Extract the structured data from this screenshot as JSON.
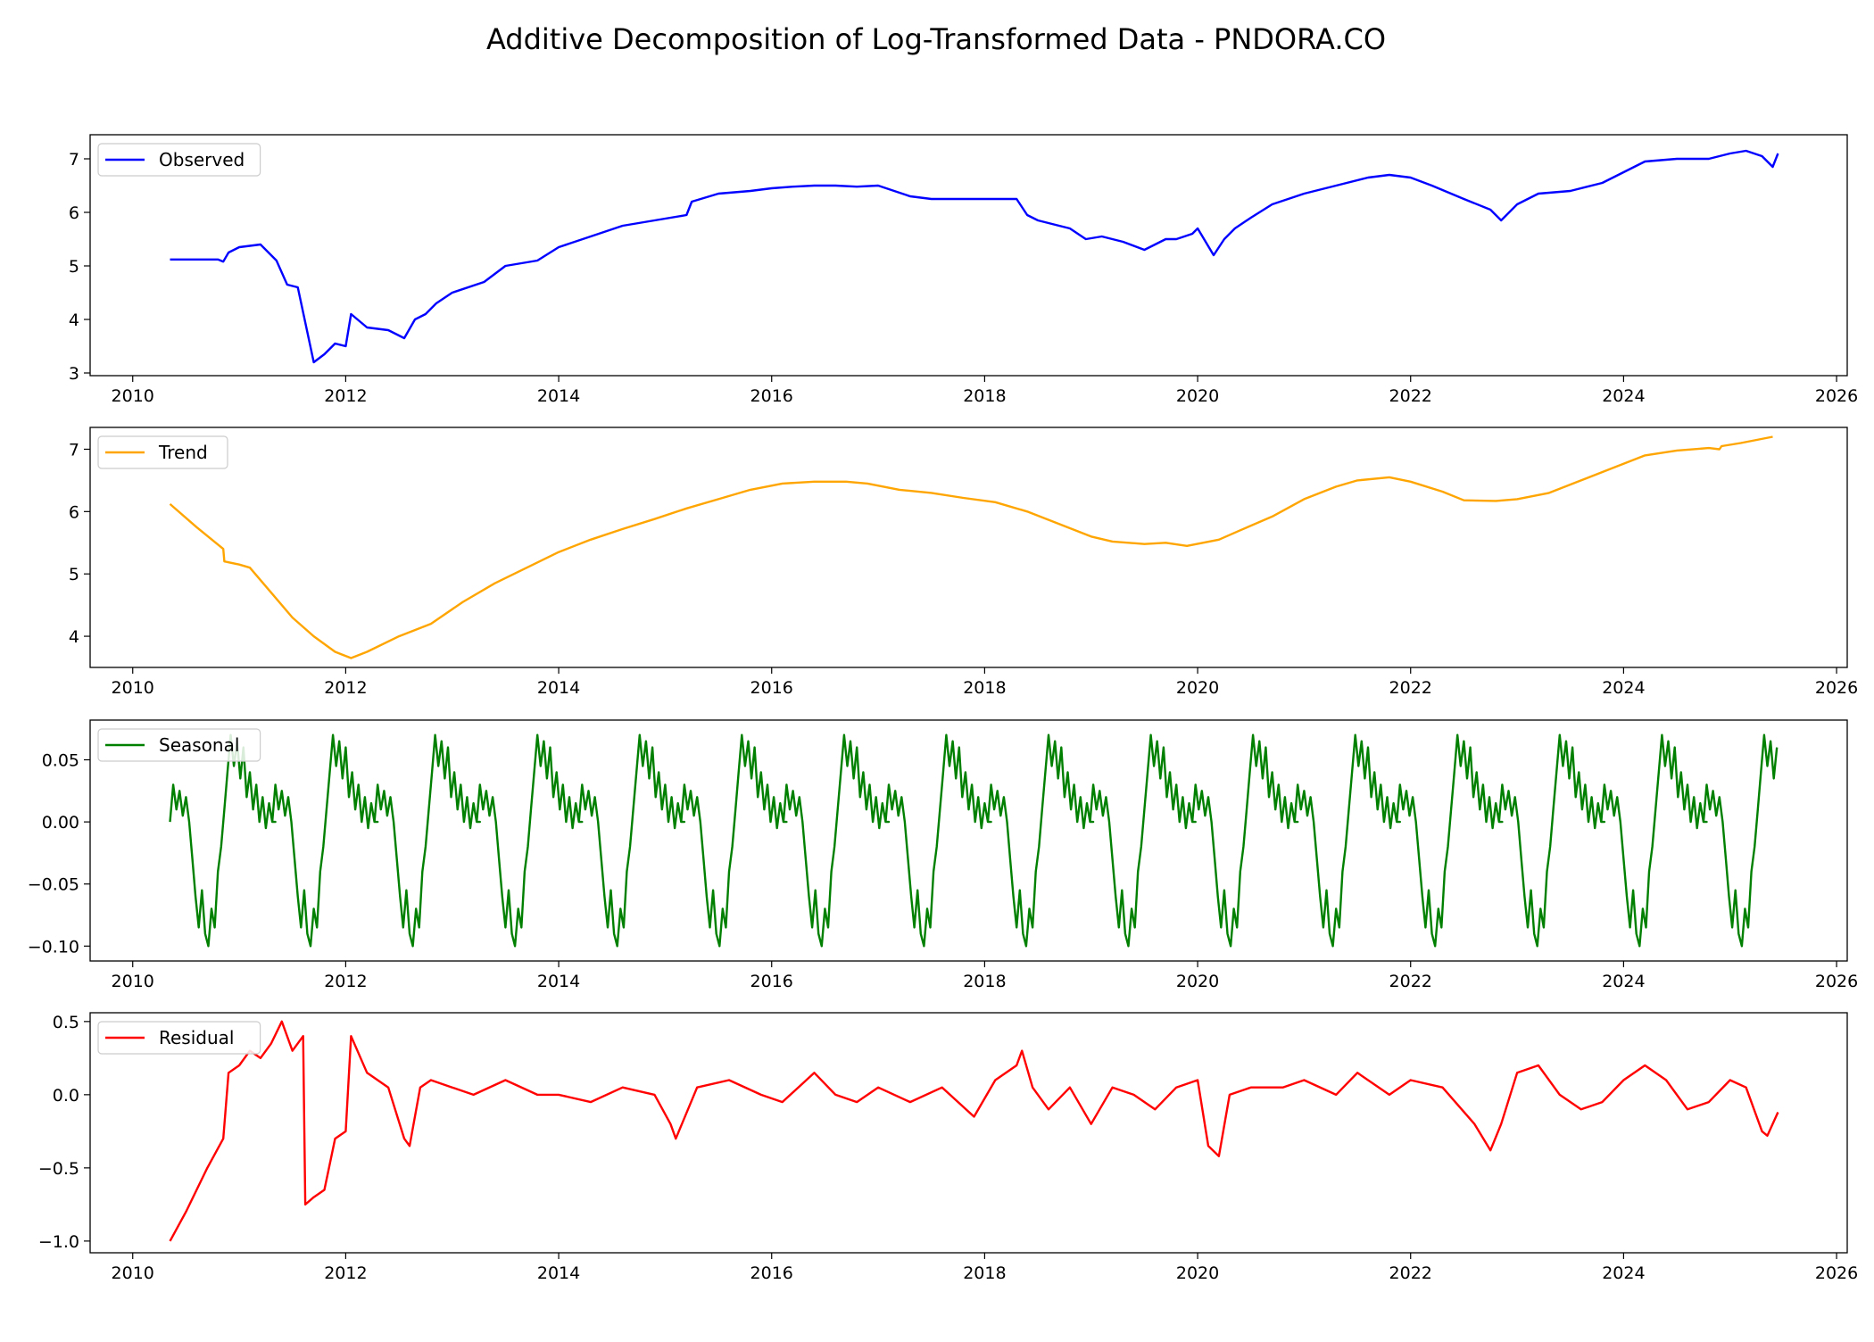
{
  "chart_data": {
    "type": "line",
    "title": "Additive Decomposition of Log-Transformed Data - PNDORA.CO",
    "x_ticks": [
      "2010",
      "2012",
      "2014",
      "2016",
      "2018",
      "2020",
      "2022",
      "2024",
      "2026"
    ],
    "xlim": [
      2009.6,
      2026.1
    ],
    "panels": [
      {
        "name": "Observed",
        "color": "#0000ff",
        "ylim": [
          2.95,
          7.45
        ],
        "y_ticks": [
          "3",
          "4",
          "5",
          "6",
          "7"
        ],
        "y_tick_values": [
          3,
          4,
          5,
          6,
          7
        ],
        "x": [
          2010.35,
          2010.8,
          2010.85,
          2010.9,
          2011.0,
          2011.2,
          2011.35,
          2011.45,
          2011.55,
          2011.7,
          2011.8,
          2011.9,
          2012.0,
          2012.05,
          2012.2,
          2012.4,
          2012.55,
          2012.65,
          2012.75,
          2012.85,
          2013.0,
          2013.3,
          2013.5,
          2013.8,
          2014.0,
          2014.3,
          2014.6,
          2014.9,
          2015.2,
          2015.25,
          2015.5,
          2015.8,
          2016.0,
          2016.2,
          2016.4,
          2016.6,
          2016.8,
          2017.0,
          2017.3,
          2017.5,
          2017.8,
          2018.0,
          2018.3,
          2018.4,
          2018.5,
          2018.6,
          2018.8,
          2018.95,
          2019.1,
          2019.3,
          2019.5,
          2019.7,
          2019.8,
          2019.95,
          2020.0,
          2020.15,
          2020.25,
          2020.35,
          2020.5,
          2020.7,
          2021.0,
          2021.3,
          2021.6,
          2021.8,
          2022.0,
          2022.2,
          2022.5,
          2022.75,
          2022.85,
          2023.0,
          2023.2,
          2023.5,
          2023.8,
          2024.0,
          2024.2,
          2024.5,
          2024.8,
          2025.0,
          2025.15,
          2025.3,
          2025.4,
          2025.45
        ],
        "values": [
          5.12,
          5.12,
          5.08,
          5.25,
          5.35,
          5.4,
          5.1,
          4.65,
          4.6,
          3.2,
          3.35,
          3.55,
          3.5,
          4.1,
          3.85,
          3.8,
          3.65,
          4.0,
          4.1,
          4.3,
          4.5,
          4.7,
          5.0,
          5.1,
          5.35,
          5.55,
          5.75,
          5.85,
          5.95,
          6.2,
          6.35,
          6.4,
          6.45,
          6.48,
          6.5,
          6.5,
          6.48,
          6.5,
          6.3,
          6.25,
          6.25,
          6.25,
          6.25,
          5.95,
          5.85,
          5.8,
          5.7,
          5.5,
          5.55,
          5.45,
          5.3,
          5.5,
          5.5,
          5.6,
          5.7,
          5.2,
          5.5,
          5.7,
          5.9,
          6.15,
          6.35,
          6.5,
          6.65,
          6.7,
          6.65,
          6.5,
          6.25,
          6.05,
          5.85,
          6.15,
          6.35,
          6.4,
          6.55,
          6.75,
          6.95,
          7.0,
          7.0,
          7.1,
          7.15,
          7.05,
          6.85,
          7.1
        ]
      },
      {
        "name": "Trend",
        "color": "#ffa500",
        "ylim": [
          3.5,
          7.35
        ],
        "y_ticks": [
          "4",
          "5",
          "6",
          "7"
        ],
        "y_tick_values": [
          4,
          5,
          6,
          7
        ],
        "x": [
          2010.35,
          2010.6,
          2010.85,
          2010.86,
          2011.0,
          2011.1,
          2011.3,
          2011.5,
          2011.7,
          2011.9,
          2012.05,
          2012.2,
          2012.5,
          2012.8,
          2013.1,
          2013.4,
          2013.7,
          2014.0,
          2014.3,
          2014.6,
          2014.9,
          2015.2,
          2015.5,
          2015.8,
          2016.1,
          2016.4,
          2016.7,
          2016.9,
          2017.2,
          2017.5,
          2017.8,
          2018.1,
          2018.4,
          2018.7,
          2019.0,
          2019.2,
          2019.5,
          2019.7,
          2019.9,
          2020.2,
          2020.4,
          2020.7,
          2021.0,
          2021.3,
          2021.5,
          2021.8,
          2022.0,
          2022.3,
          2022.5,
          2022.8,
          2023.0,
          2023.3,
          2023.6,
          2023.9,
          2024.2,
          2024.5,
          2024.8,
          2024.9,
          2024.92,
          2025.1,
          2025.4
        ],
        "values": [
          6.12,
          5.75,
          5.4,
          5.2,
          5.15,
          5.1,
          4.7,
          4.3,
          4.0,
          3.75,
          3.65,
          3.75,
          4.0,
          4.2,
          4.55,
          4.85,
          5.1,
          5.35,
          5.55,
          5.72,
          5.88,
          6.05,
          6.2,
          6.35,
          6.45,
          6.48,
          6.48,
          6.45,
          6.35,
          6.3,
          6.22,
          6.15,
          6.0,
          5.8,
          5.6,
          5.52,
          5.48,
          5.5,
          5.45,
          5.55,
          5.7,
          5.92,
          6.2,
          6.4,
          6.5,
          6.55,
          6.48,
          6.32,
          6.18,
          6.17,
          6.2,
          6.3,
          6.5,
          6.7,
          6.9,
          6.98,
          7.02,
          7.0,
          7.05,
          7.1,
          7.2
        ]
      },
      {
        "name": "Seasonal",
        "color": "#008000",
        "ylim": [
          -0.112,
          0.082
        ],
        "y_ticks": [
          "0.05",
          "0.00",
          "−0.05",
          "−0.10"
        ],
        "y_tick_values": [
          0.05,
          0.0,
          -0.05,
          -0.1
        ],
        "period_years": 0.96,
        "x_start": 2010.35,
        "x_end": 2025.45,
        "cycle_phase": [
          0,
          0.03,
          0.06,
          0.09,
          0.12,
          0.15,
          0.18,
          0.21,
          0.24,
          0.27,
          0.3,
          0.33,
          0.36,
          0.39,
          0.42,
          0.45,
          0.48,
          0.51,
          0.54,
          0.57,
          0.6,
          0.63,
          0.66,
          0.69,
          0.72,
          0.75,
          0.78,
          0.81,
          0.84,
          0.87,
          0.9,
          0.93,
          0.96,
          0.99
        ],
        "cycle_values": [
          0.0,
          0.03,
          0.01,
          0.025,
          0.005,
          0.02,
          0.0,
          -0.03,
          -0.06,
          -0.085,
          -0.055,
          -0.09,
          -0.1,
          -0.07,
          -0.085,
          -0.04,
          -0.02,
          0.01,
          0.04,
          0.07,
          0.045,
          0.065,
          0.035,
          0.06,
          0.02,
          0.04,
          0.01,
          0.03,
          0.0,
          0.02,
          -0.005,
          0.015,
          0.0,
          0.0
        ]
      },
      {
        "name": "Residual",
        "color": "#ff0000",
        "ylim": [
          -1.08,
          0.56
        ],
        "y_ticks": [
          "0.5",
          "0.0",
          "−0.5",
          "−1.0"
        ],
        "y_tick_values": [
          0.5,
          0.0,
          -0.5,
          -1.0
        ],
        "x": [
          2010.35,
          2010.5,
          2010.7,
          2010.85,
          2010.9,
          2011.0,
          2011.1,
          2011.2,
          2011.3,
          2011.4,
          2011.5,
          2011.6,
          2011.62,
          2011.7,
          2011.8,
          2011.9,
          2012.0,
          2012.05,
          2012.2,
          2012.4,
          2012.55,
          2012.6,
          2012.7,
          2012.8,
          2013.0,
          2013.2,
          2013.5,
          2013.8,
          2014.0,
          2014.3,
          2014.6,
          2014.9,
          2015.05,
          2015.1,
          2015.3,
          2015.6,
          2015.9,
          2016.1,
          2016.4,
          2016.6,
          2016.8,
          2017.0,
          2017.3,
          2017.6,
          2017.9,
          2018.1,
          2018.3,
          2018.35,
          2018.45,
          2018.6,
          2018.8,
          2019.0,
          2019.2,
          2019.4,
          2019.6,
          2019.8,
          2020.0,
          2020.1,
          2020.2,
          2020.3,
          2020.5,
          2020.8,
          2021.0,
          2021.3,
          2021.5,
          2021.8,
          2022.0,
          2022.3,
          2022.6,
          2022.75,
          2022.85,
          2023.0,
          2023.2,
          2023.4,
          2023.6,
          2023.8,
          2024.0,
          2024.2,
          2024.4,
          2024.6,
          2024.8,
          2025.0,
          2025.15,
          2025.3,
          2025.35,
          2025.45
        ],
        "values": [
          -1.0,
          -0.8,
          -0.5,
          -0.3,
          0.15,
          0.2,
          0.3,
          0.25,
          0.35,
          0.5,
          0.3,
          0.4,
          -0.75,
          -0.7,
          -0.65,
          -0.3,
          -0.25,
          0.4,
          0.15,
          0.05,
          -0.3,
          -0.35,
          0.05,
          0.1,
          0.05,
          0.0,
          0.1,
          0.0,
          0.0,
          -0.05,
          0.05,
          0.0,
          -0.2,
          -0.3,
          0.05,
          0.1,
          0.0,
          -0.05,
          0.15,
          0.0,
          -0.05,
          0.05,
          -0.05,
          0.05,
          -0.15,
          0.1,
          0.2,
          0.3,
          0.05,
          -0.1,
          0.05,
          -0.2,
          0.05,
          0.0,
          -0.1,
          0.05,
          0.1,
          -0.35,
          -0.42,
          0.0,
          0.05,
          0.05,
          0.1,
          0.0,
          0.15,
          0.0,
          0.1,
          0.05,
          -0.2,
          -0.38,
          -0.2,
          0.15,
          0.2,
          0.0,
          -0.1,
          -0.05,
          0.1,
          0.2,
          0.1,
          -0.1,
          -0.05,
          0.1,
          0.05,
          -0.25,
          -0.28,
          -0.12
        ]
      }
    ]
  }
}
